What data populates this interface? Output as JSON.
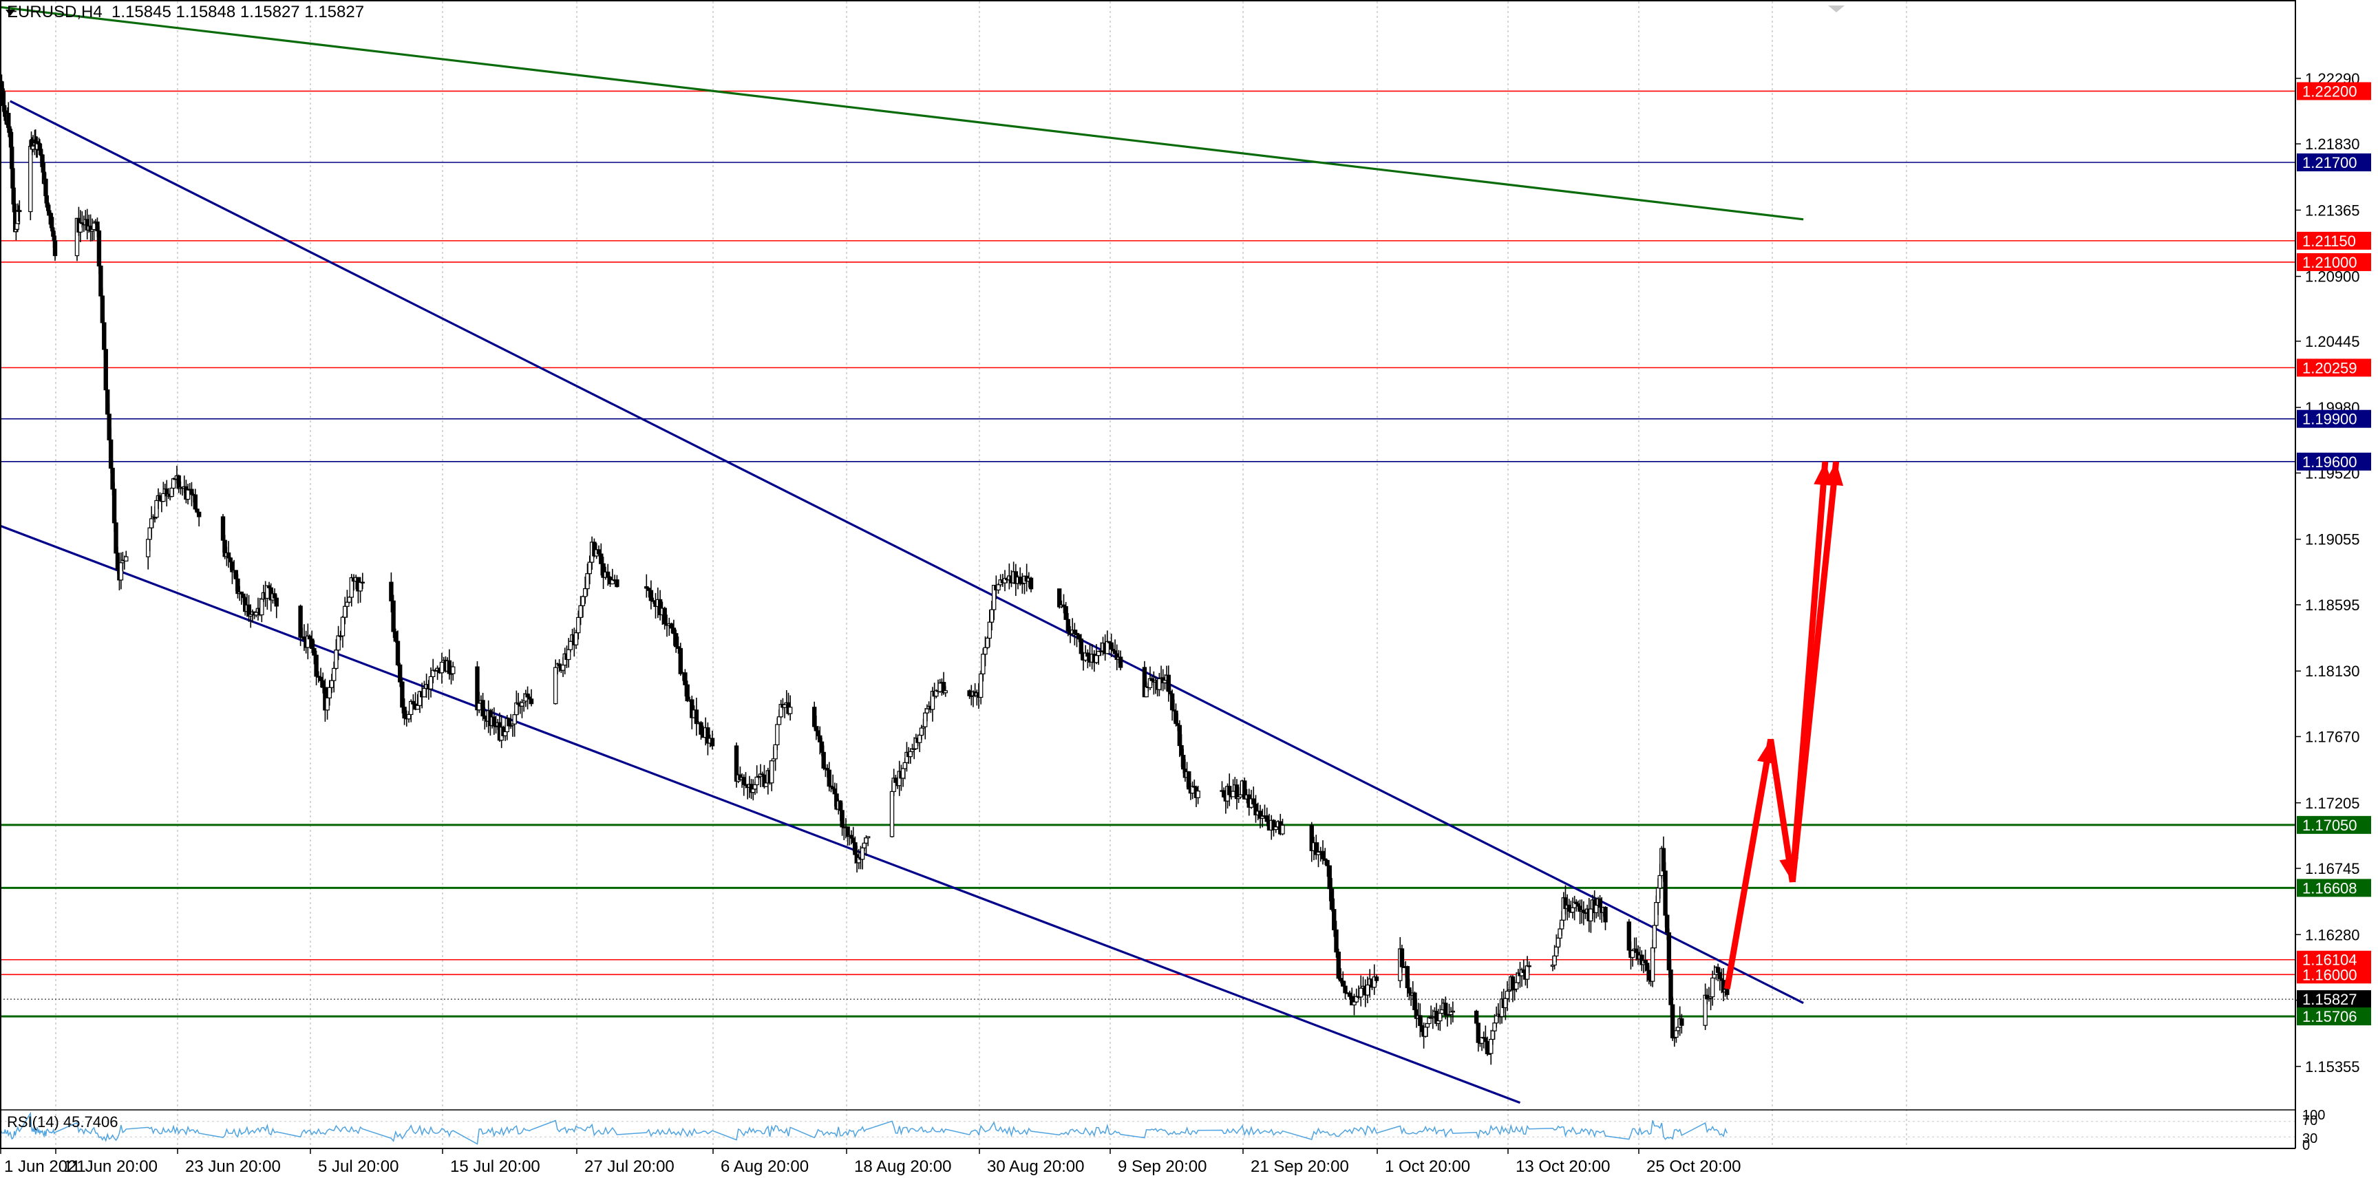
{
  "header": {
    "symbol": "EURUSD,H4",
    "ohlc": "1.15845 1.15848 1.15827 1.15827"
  },
  "indicator": {
    "label": "RSI(14) 45.7406",
    "scale_labels": [
      "100",
      "70",
      "30",
      "0"
    ]
  },
  "colors": {
    "candle": "#000000",
    "resistance": "#ff0000",
    "support_green": "#006400",
    "navy": "#000080",
    "trend_green": "#0a6b0a",
    "channel": "#00008b",
    "arrow": "#ff0000",
    "rsi": "#4fa3e0",
    "current_price": "#000000",
    "grid": "#c8c8c8"
  },
  "chart_data": {
    "type": "candlestick",
    "symbol": "EURUSD",
    "timeframe": "H4",
    "x_tick_labels": [
      "1 Jun 2021",
      "11 Jun 20:00",
      "23 Jun 20:00",
      "5 Jul 20:00",
      "15 Jul 20:00",
      "27 Jul 20:00",
      "6 Aug 20:00",
      "18 Aug 20:00",
      "30 Aug 20:00",
      "9 Sep 20:00",
      "21 Sep 20:00",
      "1 Oct 20:00",
      "13 Oct 20:00",
      "25 Oct 20:00"
    ],
    "y_tick_labels": [
      "1.22290",
      "1.21830",
      "1.21365",
      "1.20900",
      "1.20445",
      "1.19980",
      "1.19520",
      "1.19055",
      "1.18595",
      "1.18130",
      "1.17670",
      "1.17205",
      "1.16745",
      "1.16280",
      "1.15820",
      "1.15355"
    ],
    "ylim": [
      1.1505,
      1.2283
    ],
    "price_path": [
      [
        "1 Jun 2021",
        1.2225
      ],
      [
        "3 Jun 2021",
        1.219
      ],
      [
        "4 Jun 2021",
        1.212
      ],
      [
        "7 Jun 2021",
        1.2185
      ],
      [
        "9 Jun 2021",
        1.218
      ],
      [
        "10 Jun 2021",
        1.215
      ],
      [
        "11 Jun 20:00",
        1.211
      ],
      [
        "14 Jun 2021",
        1.2125
      ],
      [
        "16 Jun 2021",
        1.2125
      ],
      [
        "17 Jun 2021",
        1.199
      ],
      [
        "18 Jun 2021",
        1.188
      ],
      [
        "21 Jun 2021",
        1.191
      ],
      [
        "22 Jun 2021",
        1.1935
      ],
      [
        "23 Jun 20:00",
        1.1945
      ],
      [
        "25 Jun 2021",
        1.1935
      ],
      [
        "28 Jun 2021",
        1.19
      ],
      [
        "30 Jun 2021",
        1.186
      ],
      [
        "1 Jul 2021",
        1.185
      ],
      [
        "2 Jul 2021",
        1.187
      ],
      [
        "5 Jul 20:00",
        1.183
      ],
      [
        "7 Jul 2021",
        1.179
      ],
      [
        "9 Jul 2021",
        1.1875
      ],
      [
        "12 Jul 2021",
        1.186
      ],
      [
        "13 Jul 2021",
        1.178
      ],
      [
        "15 Jul 20:00",
        1.182
      ],
      [
        "19 Jul 2021",
        1.179
      ],
      [
        "21 Jul 2021",
        1.177
      ],
      [
        "23 Jul 2021",
        1.179
      ],
      [
        "26 Jul 2021",
        1.181
      ],
      [
        "27 Jul 20:00",
        1.184
      ],
      [
        "29 Jul 2021",
        1.19
      ],
      [
        "30 Jul 2021",
        1.188
      ],
      [
        "2 Aug 2021",
        1.187
      ],
      [
        "4 Aug 2021",
        1.184
      ],
      [
        "5 Aug 2021",
        1.179
      ],
      [
        "6 Aug 20:00",
        1.176
      ],
      [
        "10 Aug 2021",
        1.173
      ],
      [
        "12 Aug 2021",
        1.174
      ],
      [
        "13 Aug 2021",
        1.179
      ],
      [
        "16 Aug 2021",
        1.177
      ],
      [
        "18 Aug 20:00",
        1.17
      ],
      [
        "20 Aug 2021",
        1.168
      ],
      [
        "23 Aug 2021",
        1.173
      ],
      [
        "25 Aug 2021",
        1.176
      ],
      [
        "27 Aug 2021",
        1.18
      ],
      [
        "30 Aug 20:00",
        1.18
      ],
      [
        "1 Sep 2021",
        1.187
      ],
      [
        "3 Sep 2021",
        1.188
      ],
      [
        "6 Sep 2021",
        1.186
      ],
      [
        "8 Sep 2021",
        1.182
      ],
      [
        "9 Sep 20:00",
        1.183
      ],
      [
        "13 Sep 2021",
        1.18
      ],
      [
        "15 Sep 2021",
        1.181
      ],
      [
        "16 Sep 2021",
        1.177
      ],
      [
        "17 Sep 2021",
        1.173
      ],
      [
        "20 Sep 2021",
        1.1725
      ],
      [
        "21 Sep 20:00",
        1.173
      ],
      [
        "23 Sep 2021",
        1.171
      ],
      [
        "27 Sep 2021",
        1.169
      ],
      [
        "28 Sep 2021",
        1.1685
      ],
      [
        "29 Sep 2021",
        1.16
      ],
      [
        "30 Sep 2021",
        1.158
      ],
      [
        "1 Oct 20:00",
        1.16
      ],
      [
        "4 Oct 2021",
        1.1615
      ],
      [
        "6 Oct 2021",
        1.156
      ],
      [
        "8 Oct 2021",
        1.1575
      ],
      [
        "11 Oct 2021",
        1.156
      ],
      [
        "12 Oct 2021",
        1.1545
      ],
      [
        "13 Oct 20:00",
        1.159
      ],
      [
        "15 Oct 2021",
        1.16
      ],
      [
        "18 Oct 2021",
        1.161
      ],
      [
        "19 Oct 2021",
        1.165
      ],
      [
        "21 Oct 2021",
        1.164
      ],
      [
        "22 Oct 2021",
        1.165
      ],
      [
        "25 Oct 20:00",
        1.161
      ],
      [
        "27 Oct 2021",
        1.16
      ],
      [
        "28 Oct 2021",
        1.169
      ],
      [
        "29 Oct 2021",
        1.156
      ],
      [
        "1 Nov 2021",
        1.158
      ],
      [
        "2 Nov 2021",
        1.16
      ],
      [
        "3 Nov 2021",
        1.1585
      ]
    ],
    "horizontal_levels": [
      {
        "price": 1.222,
        "label": "1.22200",
        "color": "red"
      },
      {
        "price": 1.217,
        "label": "1.21700",
        "color": "navy"
      },
      {
        "price": 1.2115,
        "label": "1.21150",
        "color": "red"
      },
      {
        "price": 1.21,
        "label": "1.21000",
        "color": "red"
      },
      {
        "price": 1.20259,
        "label": "1.20259",
        "color": "red"
      },
      {
        "price": 1.199,
        "label": "1.19900",
        "color": "navy"
      },
      {
        "price": 1.196,
        "label": "1.19600",
        "color": "navy"
      },
      {
        "price": 1.1705,
        "label": "1.17050",
        "color": "green"
      },
      {
        "price": 1.16608,
        "label": "1.16608",
        "color": "green"
      },
      {
        "price": 1.16104,
        "label": "1.16104",
        "color": "red"
      },
      {
        "price": 1.16,
        "label": "1.16000",
        "color": "red"
      },
      {
        "price": 1.15827,
        "label": "1.15827",
        "color": "black"
      },
      {
        "price": 1.15706,
        "label": "1.15706",
        "color": "green"
      }
    ],
    "trend_lines": [
      {
        "name": "green-downtrend",
        "from": [
          "1 Jun 2021",
          1.2279
        ],
        "to": [
          "10 Nov 2021",
          1.213
        ]
      },
      {
        "name": "channel-upper",
        "from": [
          "3 Jun 2021",
          1.2213
        ],
        "to": [
          "10 Nov 2021",
          1.158
        ]
      },
      {
        "name": "channel-lower",
        "from": [
          "1 Jun 2021",
          1.1915
        ],
        "to": [
          "15 Oct 2021",
          1.151
        ]
      }
    ],
    "projection_arrows": [
      {
        "points": [
          [
            "3 Nov 2021",
            1.159
          ],
          [
            "7 Nov 2021",
            1.1765
          ],
          [
            "9 Nov 2021",
            1.1665
          ],
          [
            "12 Nov 2021",
            1.196
          ]
        ]
      },
      {
        "points": [
          [
            "9 Nov 2021",
            1.1665
          ],
          [
            "13 Nov 2021",
            1.196
          ]
        ]
      }
    ],
    "rsi": {
      "period": 14,
      "value": 45.7406,
      "ylim": [
        0,
        100
      ]
    }
  }
}
